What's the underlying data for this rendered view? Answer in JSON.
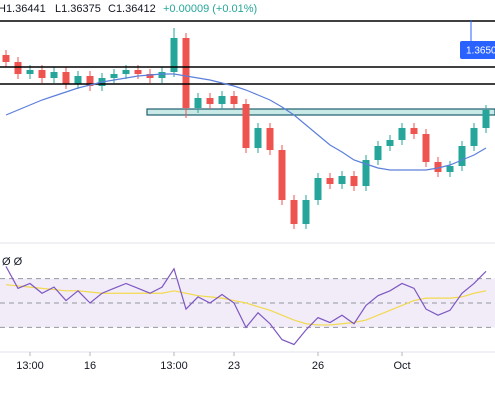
{
  "chart_data": {
    "type": "candlestick",
    "header": {
      "high": "H1.36441",
      "low": "L1.36375",
      "close": "C1.36412",
      "change": "+0.00009 (+0.01%)"
    },
    "categories": [
      null,
      null,
      "13:00",
      null,
      null,
      null,
      null,
      "16",
      null,
      null,
      null,
      null,
      null,
      null,
      "13:00",
      null,
      null,
      null,
      null,
      "23",
      null,
      null,
      null,
      null,
      null,
      null,
      "26",
      null,
      null,
      null,
      null,
      null,
      null,
      "Oct",
      null,
      null,
      null,
      null,
      null,
      null,
      null
    ],
    "open": [
      1.3645,
      1.3638,
      1.3626,
      1.363,
      1.3622,
      1.3628,
      1.3616,
      1.3624,
      1.3614,
      1.3622,
      1.3626,
      1.363,
      1.3626,
      1.3622,
      1.3628,
      1.3662,
      1.3592,
      1.3602,
      1.3596,
      1.3604,
      1.3596,
      1.3552,
      1.3572,
      1.355,
      1.35,
      1.3476,
      1.35,
      1.3522,
      1.3516,
      1.3524,
      1.3514,
      1.354,
      1.3554,
      1.356,
      1.3572,
      1.3566,
      1.3538,
      1.3528,
      1.3534,
      1.3554,
      1.3572
    ],
    "high": [
      1.365,
      1.3643,
      1.3635,
      1.3635,
      1.3633,
      1.3633,
      1.3629,
      1.3629,
      1.3627,
      1.3631,
      1.3635,
      1.3635,
      1.3631,
      1.3633,
      1.3672,
      1.3667,
      1.3607,
      1.3607,
      1.3609,
      1.3609,
      1.3601,
      1.3577,
      1.3577,
      1.3555,
      1.3505,
      1.3505,
      1.3527,
      1.3527,
      1.3529,
      1.3529,
      1.3545,
      1.3559,
      1.3565,
      1.3577,
      1.3577,
      1.3571,
      1.3543,
      1.3539,
      1.3559,
      1.3577,
      1.3595
    ],
    "low": [
      1.3633,
      1.3621,
      1.3621,
      1.3617,
      1.3617,
      1.3611,
      1.3611,
      1.3609,
      1.3609,
      1.3617,
      1.3621,
      1.3621,
      1.3617,
      1.3617,
      1.3623,
      1.3582,
      1.3587,
      1.3591,
      1.3591,
      1.3591,
      1.3547,
      1.3547,
      1.3545,
      1.3495,
      1.3471,
      1.3471,
      1.3495,
      1.3511,
      1.3511,
      1.3509,
      1.3509,
      1.3535,
      1.3549,
      1.3555,
      1.3561,
      1.3533,
      1.3523,
      1.3523,
      1.3529,
      1.3549,
      1.3567
    ],
    "close": [
      1.3638,
      1.3626,
      1.363,
      1.3622,
      1.3628,
      1.3616,
      1.3624,
      1.3614,
      1.3622,
      1.3626,
      1.363,
      1.3626,
      1.3622,
      1.3628,
      1.3662,
      1.3592,
      1.3602,
      1.3596,
      1.3604,
      1.3596,
      1.3552,
      1.3572,
      1.355,
      1.35,
      1.3476,
      1.35,
      1.3522,
      1.3516,
      1.3524,
      1.3514,
      1.354,
      1.3554,
      1.356,
      1.3572,
      1.3566,
      1.3538,
      1.3528,
      1.3534,
      1.3554,
      1.3572,
      1.359
    ],
    "up_color": "#26a69a",
    "down_color": "#ef5350",
    "ylim": [
      1.346,
      1.37
    ],
    "levels": [
      1.3679,
      1.3633,
      1.3616
    ],
    "zone": [
      1.3585,
      1.3591
    ],
    "price_tag": {
      "value": 1.365,
      "label": "1.3650"
    },
    "ma": {
      "color": "#5b7fdb",
      "values": [
        1.3585,
        1.359,
        1.3595,
        1.36,
        1.3604,
        1.3608,
        1.3612,
        1.3615,
        1.3618,
        1.362,
        1.3622,
        1.3624,
        1.3625,
        1.3626,
        1.3626,
        1.3624,
        1.3622,
        1.362,
        1.3617,
        1.3614,
        1.361,
        1.3605,
        1.36,
        1.3593,
        1.3585,
        1.3575,
        1.3565,
        1.3555,
        1.3548,
        1.354,
        1.3536,
        1.3532,
        1.353,
        1.353,
        1.353,
        1.353,
        1.3532,
        1.3535,
        1.354,
        1.3545,
        1.3552
      ]
    },
    "rsi": {
      "legend": "Ø  Ø",
      "ylim": [
        0,
        100
      ],
      "levels": [
        70,
        50,
        30
      ],
      "color": "#7e57c2",
      "values": [
        80,
        62,
        66,
        58,
        63,
        52,
        60,
        50,
        58,
        62,
        66,
        62,
        58,
        63,
        78,
        45,
        55,
        50,
        57,
        50,
        30,
        42,
        33,
        20,
        16,
        28,
        38,
        34,
        40,
        33,
        48,
        56,
        60,
        66,
        62,
        45,
        40,
        44,
        58,
        66,
        76
      ],
      "ma_color": "#f2d94e",
      "ma_values": [
        65,
        64,
        63,
        62,
        61,
        60,
        60,
        59,
        58,
        58,
        58,
        58,
        58,
        58,
        60,
        58,
        56,
        55,
        54,
        52,
        50,
        47,
        44,
        40,
        36,
        33,
        32,
        32,
        33,
        34,
        36,
        40,
        44,
        48,
        52,
        54,
        54,
        54,
        55,
        58,
        60
      ]
    }
  }
}
